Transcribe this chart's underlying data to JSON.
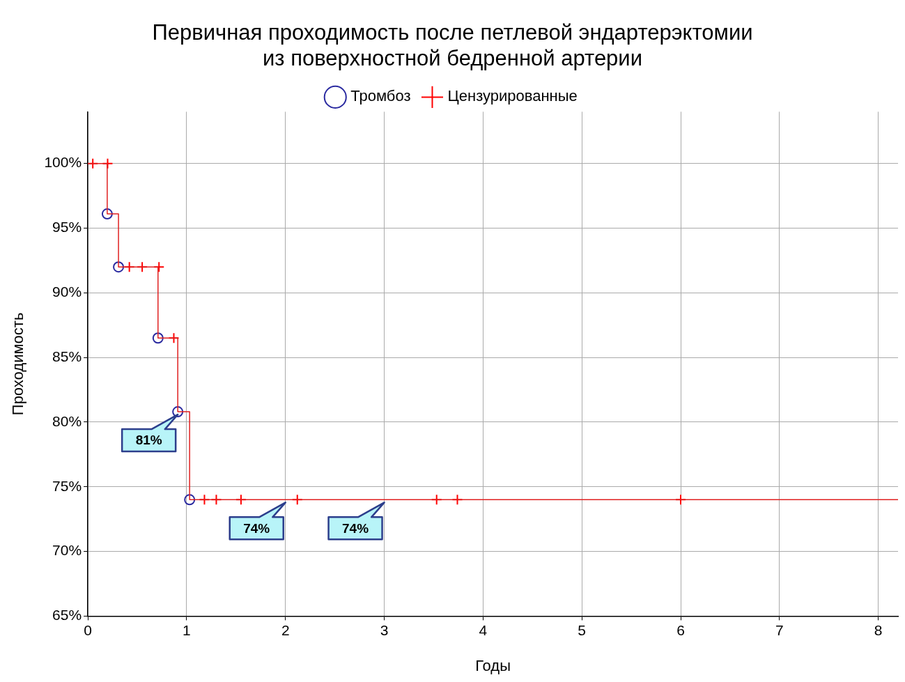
{
  "chart_data": {
    "type": "step",
    "title": "Первичная проходимость после петлевой эндартерэктомии\nиз поверхностной бедренной артерии",
    "xlabel": "Годы",
    "ylabel": "Проходимость",
    "series": [
      {
        "color": "#e02020",
        "marker": "none",
        "x": [
          0,
          0.196,
          0.31,
          0.71,
          0.91,
          1.03,
          8.2
        ],
        "values": [
          100,
          96.1,
          92.0,
          86.5,
          80.8,
          74.0,
          74.0
        ]
      },
      {
        "type": "scatter",
        "name": "Тромбоз",
        "color": "#2a2aa0",
        "marker": "circle",
        "x": [
          0.196,
          0.31,
          0.71,
          0.91,
          1.03
        ],
        "values": [
          96.1,
          92.0,
          86.5,
          80.8,
          74.0
        ]
      },
      {
        "type": "scatter",
        "name": "Цензурированные",
        "color": "#ff0000",
        "marker": "cross",
        "x": [
          0.05,
          0.2,
          0.42,
          0.55,
          0.72,
          0.87,
          1.18,
          1.3,
          1.55,
          2.12,
          3.53,
          3.74,
          6.0
        ],
        "values": [
          100,
          100,
          92.0,
          92.0,
          92.0,
          86.5,
          74.0,
          74.0,
          74.0,
          74.0,
          74.0,
          74.0,
          74.0
        ]
      }
    ],
    "xlim": [
      0,
      8.2
    ],
    "xticks": [
      0,
      1,
      2,
      3,
      4,
      5,
      6,
      7,
      8
    ],
    "ylim": [
      65,
      104
    ],
    "yticks": [
      {
        "value": 65,
        "label": "65%"
      },
      {
        "value": 70,
        "label": "70%"
      },
      {
        "value": 75,
        "label": "75%"
      },
      {
        "value": 80,
        "label": "80%"
      },
      {
        "value": 85,
        "label": "85%"
      },
      {
        "value": 90,
        "label": "90%"
      },
      {
        "value": 95,
        "label": "95%"
      },
      {
        "value": 100,
        "label": "100%"
      }
    ],
    "grid": true,
    "legend": "top",
    "annotations": [
      {
        "text": "81%",
        "x": 0.91,
        "y": 80.8
      },
      {
        "text": "74%",
        "x": 2,
        "y": 74
      },
      {
        "text": "74%",
        "x": 3,
        "y": 74
      }
    ]
  }
}
